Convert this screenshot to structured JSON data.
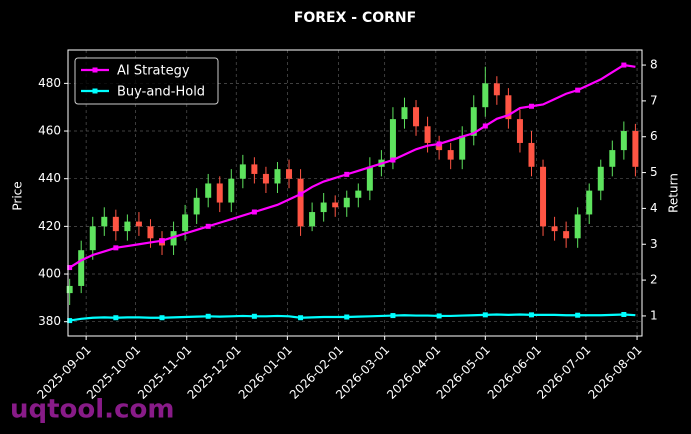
{
  "chart_data": {
    "type": "candlestick",
    "title": "FOREX - CORNF",
    "ylabel": "Price",
    "y2label": "Return",
    "watermark": "uqtool.com",
    "x": [
      "2025-08-22",
      "2025-08-29",
      "2025-09-05",
      "2025-09-12",
      "2025-09-19",
      "2025-09-26",
      "2025-10-03",
      "2025-10-10",
      "2025-10-17",
      "2025-10-24",
      "2025-10-31",
      "2025-11-07",
      "2025-11-14",
      "2025-11-21",
      "2025-11-28",
      "2025-12-05",
      "2025-12-12",
      "2025-12-19",
      "2025-12-26",
      "2026-01-02",
      "2026-01-09",
      "2026-01-16",
      "2026-01-23",
      "2026-01-30",
      "2026-02-06",
      "2026-02-13",
      "2026-02-20",
      "2026-02-27",
      "2026-03-06",
      "2026-03-13",
      "2026-03-20",
      "2026-03-27",
      "2026-04-03",
      "2026-04-10",
      "2026-04-17",
      "2026-04-24",
      "2026-05-01",
      "2026-05-08",
      "2026-05-15",
      "2026-05-22",
      "2026-05-29",
      "2026-06-05",
      "2026-06-12",
      "2026-06-19",
      "2026-06-26",
      "2026-07-03",
      "2026-07-10",
      "2026-07-17",
      "2026-07-24",
      "2026-07-31"
    ],
    "open": [
      392,
      395,
      410,
      420,
      424,
      418,
      422,
      420,
      415,
      412,
      418,
      425,
      432,
      438,
      430,
      440,
      446,
      442,
      438,
      444,
      440,
      420,
      426,
      430,
      428,
      432,
      435,
      445,
      448,
      465,
      470,
      462,
      455,
      452,
      448,
      458,
      470,
      480,
      475,
      465,
      455,
      445,
      420,
      418,
      415,
      425,
      435,
      445,
      452,
      460
    ],
    "high": [
      398,
      414,
      424,
      428,
      427,
      425,
      426,
      423,
      418,
      422,
      429,
      436,
      442,
      441,
      444,
      450,
      449,
      445,
      447,
      448,
      444,
      430,
      434,
      433,
      435,
      438,
      449,
      452,
      470,
      474,
      473,
      466,
      458,
      455,
      462,
      475,
      487,
      483,
      478,
      469,
      460,
      448,
      424,
      422,
      428,
      438,
      448,
      456,
      464,
      463
    ],
    "low": [
      387,
      392,
      406,
      416,
      414,
      414,
      416,
      411,
      408,
      408,
      414,
      421,
      428,
      426,
      426,
      436,
      438,
      434,
      434,
      436,
      416,
      418,
      422,
      424,
      424,
      428,
      431,
      441,
      444,
      461,
      458,
      451,
      448,
      444,
      444,
      454,
      466,
      471,
      461,
      451,
      441,
      416,
      414,
      411,
      411,
      421,
      431,
      441,
      448,
      441
    ],
    "close": [
      395,
      410,
      420,
      424,
      418,
      422,
      420,
      415,
      412,
      418,
      425,
      432,
      438,
      430,
      440,
      446,
      442,
      438,
      444,
      440,
      420,
      426,
      430,
      428,
      432,
      435,
      445,
      448,
      465,
      470,
      462,
      455,
      452,
      448,
      458,
      470,
      480,
      475,
      465,
      455,
      445,
      420,
      418,
      415,
      425,
      435,
      445,
      452,
      460,
      445
    ],
    "up_color": "#5ee35e",
    "down_color": "#ff5544",
    "series": [
      {
        "name": "AI Strategy",
        "color": "#ff00ff",
        "axis": "y2",
        "values": [
          2.35,
          2.55,
          2.7,
          2.8,
          2.9,
          2.95,
          3.0,
          3.05,
          3.1,
          3.2,
          3.3,
          3.4,
          3.5,
          3.6,
          3.7,
          3.8,
          3.9,
          4.0,
          4.1,
          4.25,
          4.4,
          4.6,
          4.75,
          4.85,
          4.95,
          5.05,
          5.15,
          5.25,
          5.35,
          5.5,
          5.65,
          5.75,
          5.8,
          5.9,
          6.0,
          6.1,
          6.3,
          6.5,
          6.6,
          6.8,
          6.85,
          6.9,
          7.05,
          7.2,
          7.3,
          7.45,
          7.6,
          7.8,
          8.0,
          7.95
        ]
      },
      {
        "name": "Buy-and-Hold",
        "color": "#00ffff",
        "axis": "y2",
        "values": [
          0.87,
          0.92,
          0.95,
          0.96,
          0.95,
          0.96,
          0.96,
          0.95,
          0.95,
          0.96,
          0.97,
          0.98,
          0.99,
          0.98,
          0.99,
          1.0,
          0.99,
          0.99,
          1.0,
          0.99,
          0.95,
          0.96,
          0.97,
          0.97,
          0.97,
          0.98,
          0.99,
          1.0,
          1.01,
          1.02,
          1.01,
          1.01,
          1.0,
          1.0,
          1.01,
          1.02,
          1.03,
          1.04,
          1.03,
          1.04,
          1.03,
          1.03,
          1.03,
          1.02,
          1.02,
          1.02,
          1.02,
          1.03,
          1.04,
          1.02
        ]
      }
    ],
    "xlim": [
      "2025-08-21",
      "2026-08-04"
    ],
    "xticks": [
      "2025-09-01",
      "2025-10-01",
      "2025-11-01",
      "2025-12-01",
      "2026-01-01",
      "2026-02-01",
      "2026-03-01",
      "2026-04-01",
      "2026-05-01",
      "2026-06-01",
      "2026-07-01",
      "2026-08-01"
    ],
    "ylim": [
      374,
      494
    ],
    "yticks": [
      380,
      400,
      420,
      440,
      460,
      480
    ],
    "y2lim": [
      0.44,
      8.42
    ],
    "y2ticks": [
      1,
      2,
      3,
      4,
      5,
      6,
      7,
      8
    ],
    "grid": true,
    "legend": "upper-left"
  }
}
